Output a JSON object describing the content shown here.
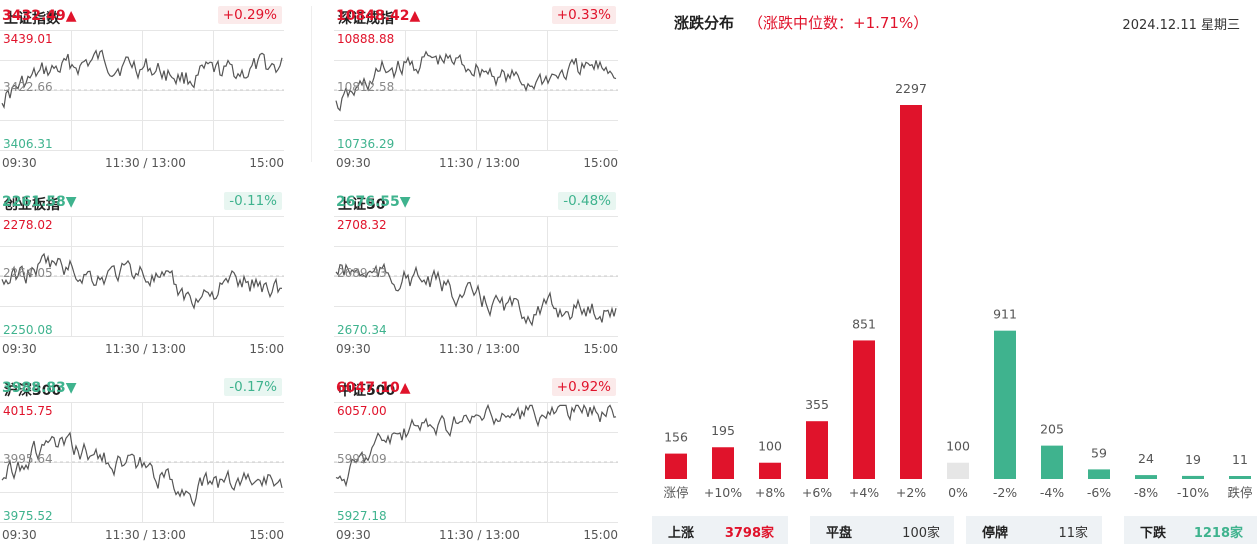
{
  "colors": {
    "up": "#e0132b",
    "down": "#3fb38e",
    "flat": "#e6e6e6",
    "line": "#555555",
    "grid": "#e6e6e6"
  },
  "up_arrow": "▲",
  "down_arrow": "▼",
  "time_labels": [
    "09:30",
    "11:30 / 13:00",
    "15:00"
  ],
  "indices": [
    {
      "name": "上证指数",
      "value": "3432.49",
      "direction": "up",
      "change": "+0.29%",
      "high": "3439.01",
      "mid": "3422.66",
      "low": "3406.31"
    },
    {
      "name": "深证成指",
      "value": "10848.42",
      "direction": "up",
      "change": "+0.33%",
      "high": "10888.88",
      "mid": "10812.58",
      "low": "10736.29"
    },
    {
      "name": "创业板指",
      "value": "2261.58",
      "direction": "down",
      "change": "-0.11%",
      "high": "2278.02",
      "mid": "2264.05",
      "low": "2250.08"
    },
    {
      "name": "上证50",
      "value": "2676.55",
      "direction": "down",
      "change": "-0.48%",
      "high": "2708.32",
      "mid": "2689.33",
      "low": "2670.34"
    },
    {
      "name": "沪深300",
      "value": "3988.83",
      "direction": "down",
      "change": "-0.17%",
      "high": "4015.75",
      "mid": "3995.64",
      "low": "3975.52"
    },
    {
      "name": "中证500",
      "value": "6047.10",
      "direction": "up",
      "change": "+0.92%",
      "high": "6057.00",
      "mid": "5992.09",
      "low": "5927.18"
    }
  ],
  "distribution": {
    "title": "涨跌分布",
    "subtitle": "（涨跌中位数：+1.71%）",
    "date": "2024.12.11 星期三"
  },
  "chart_data": {
    "type": "bar",
    "title": "涨跌分布",
    "categories": [
      "涨停",
      "+10%",
      "+8%",
      "+6%",
      "+4%",
      "+2%",
      "0%",
      "-2%",
      "-4%",
      "-6%",
      "-8%",
      "-10%",
      "跌停"
    ],
    "values": [
      156,
      195,
      100,
      355,
      851,
      2297,
      100,
      911,
      205,
      59,
      24,
      19,
      11
    ],
    "bar_colors": [
      "up",
      "up",
      "up",
      "up",
      "up",
      "up",
      "flat",
      "down",
      "down",
      "down",
      "down",
      "down",
      "down"
    ],
    "ylim": [
      0,
      2297
    ]
  },
  "summary": [
    {
      "label": "上涨",
      "value": "3798家",
      "color": "up"
    },
    {
      "label": "平盘",
      "value": "100家",
      "color": "neutral"
    },
    {
      "label": "停牌",
      "value": "11家",
      "color": "neutral"
    },
    {
      "label": "下跌",
      "value": "1218家",
      "color": "down"
    }
  ]
}
